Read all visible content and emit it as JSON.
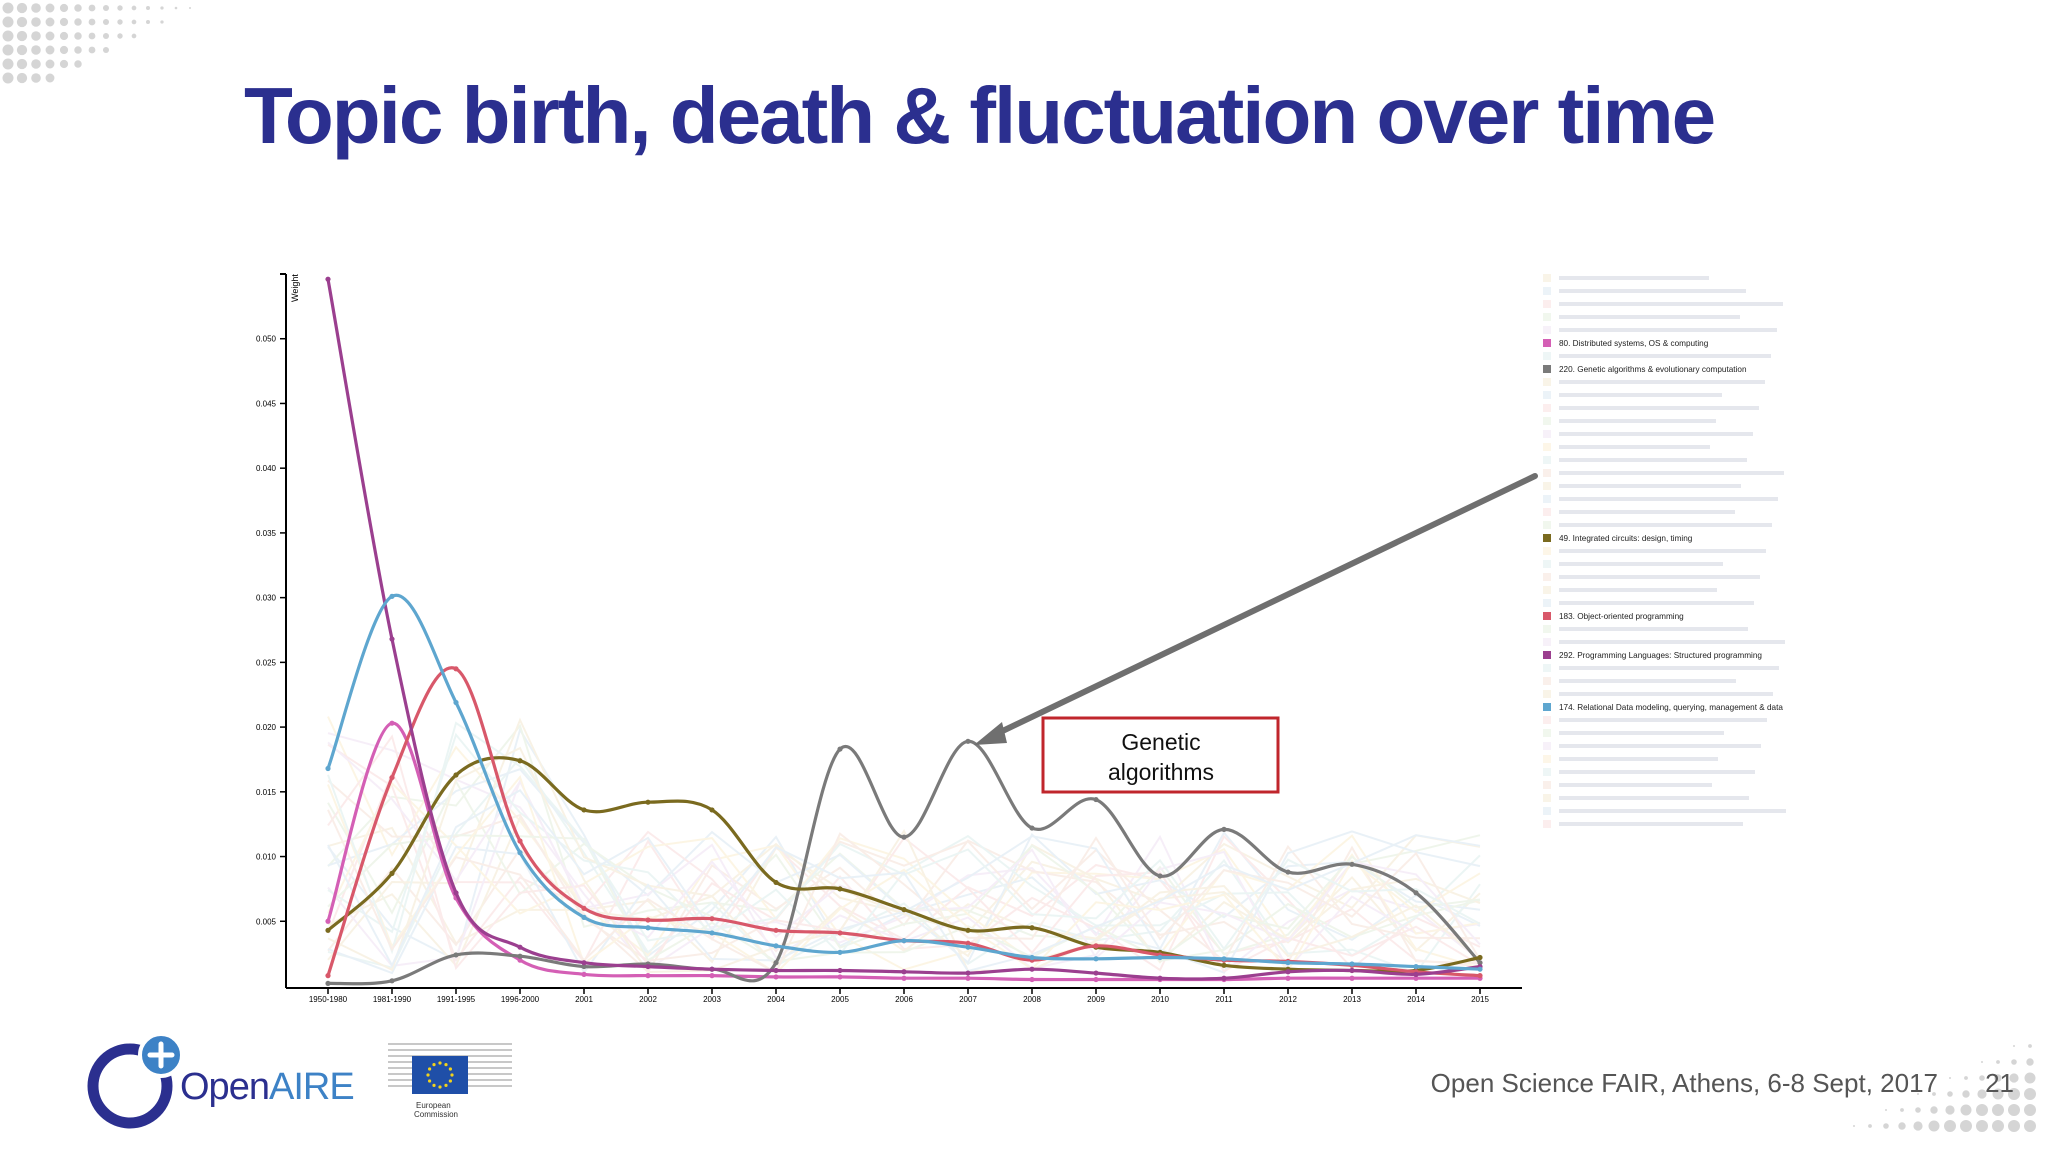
{
  "slide": {
    "title": "Topic birth, death & fluctuation over time",
    "footer": "Open Science FAIR, Athens, 6-8 Sept, 2017",
    "page_number": "21",
    "logo_text": "OpenAIRE",
    "ec_text": "European Commission"
  },
  "annotation": {
    "text_line1": "Genetic",
    "text_line2": "algorithms"
  },
  "colors": {
    "title": "#2b2f8f",
    "annotation_border": "#c0262c"
  },
  "chart_data": {
    "type": "line",
    "ylabel": "Weight",
    "xlabel": "",
    "ylim": [
      0,
      0.055
    ],
    "yticks": [
      "0.005",
      "0.010",
      "0.015",
      "0.020",
      "0.025",
      "0.030",
      "0.035",
      "0.040",
      "0.045",
      "0.050"
    ],
    "categories": [
      "1950-1980",
      "1981-1990",
      "1991-1995",
      "1996-2000",
      "2001",
      "2002",
      "2003",
      "2004",
      "2005",
      "2006",
      "2007",
      "2008",
      "2009",
      "2010",
      "2011",
      "2012",
      "2013",
      "2014",
      "2015"
    ],
    "legend_placement": "right",
    "series": [
      {
        "name": "80. Distributed systems, OS & computing",
        "color": "#d45fb5",
        "values": [
          0.005,
          0.0203,
          0.0068,
          0.002,
          0.0009,
          0.0008,
          0.0008,
          0.0007,
          0.0007,
          0.0006,
          0.0006,
          0.0005,
          0.0005,
          0.0005,
          0.0005,
          0.0006,
          0.0006,
          0.0006,
          0.0006
        ]
      },
      {
        "name": "220. Genetic algorithms & evolutionary computation",
        "color": "#7a7a7a",
        "values": [
          0.0002,
          0.0004,
          0.0024,
          0.0023,
          0.0015,
          0.0017,
          0.0013,
          0.0018,
          0.0183,
          0.0115,
          0.0189,
          0.0122,
          0.0144,
          0.0085,
          0.0121,
          0.0088,
          0.0094,
          0.0072,
          0.0018
        ]
      },
      {
        "name": "49. Integrated circuits: design, timing",
        "color": "#7a6a1f",
        "values": [
          0.0043,
          0.0087,
          0.0163,
          0.0174,
          0.0136,
          0.0142,
          0.0136,
          0.008,
          0.0075,
          0.0059,
          0.0043,
          0.0045,
          0.003,
          0.0026,
          0.0016,
          0.0013,
          0.0012,
          0.0012,
          0.0022
        ]
      },
      {
        "name": "183. Object-oriented programming",
        "color": "#d8586a",
        "values": [
          0.0008,
          0.0161,
          0.0245,
          0.0112,
          0.006,
          0.0051,
          0.0052,
          0.0043,
          0.0041,
          0.0035,
          0.0033,
          0.002,
          0.0031,
          0.0024,
          0.002,
          0.0019,
          0.0016,
          0.0011,
          0.0008
        ]
      },
      {
        "name": "292. Programming Languages: Structured programming",
        "color": "#9b3f8f",
        "values": [
          0.0546,
          0.0268,
          0.0072,
          0.003,
          0.0018,
          0.0015,
          0.0013,
          0.0012,
          0.0012,
          0.0011,
          0.001,
          0.0013,
          0.001,
          0.0006,
          0.0006,
          0.0011,
          0.0012,
          0.0009,
          0.0015
        ]
      },
      {
        "name": "174. Relational Data modeling, querying, management & data",
        "color": "#5ea6cf",
        "values": [
          0.0168,
          0.0301,
          0.0219,
          0.0103,
          0.0053,
          0.0045,
          0.0041,
          0.0031,
          0.0026,
          0.0035,
          0.003,
          0.0022,
          0.0021,
          0.0022,
          0.0021,
          0.0018,
          0.0017,
          0.0015,
          0.0013
        ]
      }
    ]
  }
}
